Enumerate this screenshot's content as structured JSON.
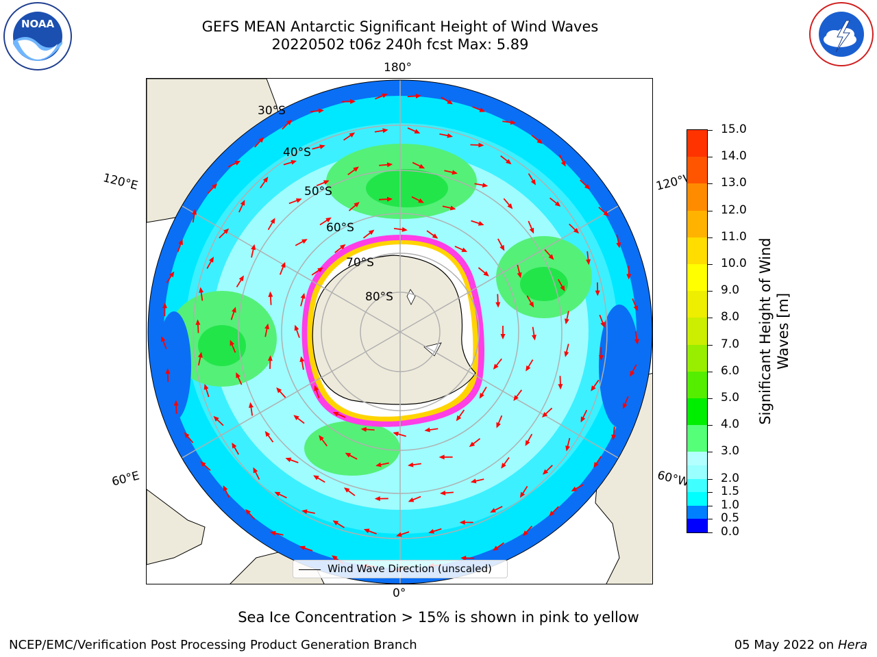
{
  "title_line1": "GEFS MEAN Antarctic Significant Height of Wind Waves",
  "title_line2": "20220502 t06z 240h fcst   Max: 5.89",
  "map": {
    "projection": "south polar stereographic",
    "longitude_labels": {
      "top": "180°",
      "bottom": "0°",
      "upper_left": "120°E",
      "lower_left": "60°E",
      "upper_right": "120°W",
      "lower_right": "60°W"
    },
    "latitude_labels": [
      "30°S",
      "40°S",
      "50°S",
      "60°S",
      "70°S",
      "80°S"
    ],
    "field": "significant height of wind waves",
    "field_max": 5.89,
    "land_color": "#eeeadb",
    "gridline_color": "#b0b0b0",
    "arrow_color": "#ff0000",
    "legend": {
      "label": "Wind Wave Direction (unscaled)"
    }
  },
  "colorbar": {
    "label": "Significant Height of Wind Waves [m]",
    "label_line1": "Significant Height of Wind",
    "label_line2": "Waves [m]",
    "min": 0.0,
    "max": 15.0,
    "levels": [
      0.0,
      0.5,
      1.0,
      1.5,
      2.0,
      2.5,
      3.0,
      4.0,
      5.0,
      6.0,
      7.0,
      8.0,
      9.0,
      10.0,
      11.0,
      12.0,
      13.0,
      14.0,
      15.0
    ],
    "tick_labels": [
      "0.0",
      "0.5",
      "1.0",
      "1.5",
      "2.0",
      "3.0",
      "4.0",
      "5.0",
      "6.0",
      "7.0",
      "8.0",
      "9.0",
      "10.0",
      "11.0",
      "12.0",
      "13.0",
      "14.0",
      "15.0"
    ],
    "colors": [
      "#0000ff",
      "#0080ff",
      "#00ffff",
      "#40ffff",
      "#99ffff",
      "#b3ffff",
      "#55ff77",
      "#00ee00",
      "#55ee00",
      "#99ee00",
      "#ccee00",
      "#eeee00",
      "#ffff00",
      "#ffdd00",
      "#ffb300",
      "#ff8c00",
      "#ff5500",
      "#ff3300",
      "#ff0000"
    ]
  },
  "ice_note": "Sea Ice Concentration > 15% is shown in pink to yellow",
  "footer_left": "NCEP/EMC/Verification Post Processing Product Generation Branch",
  "footer_date": "05 May 2022 on",
  "footer_machine": "Hera"
}
